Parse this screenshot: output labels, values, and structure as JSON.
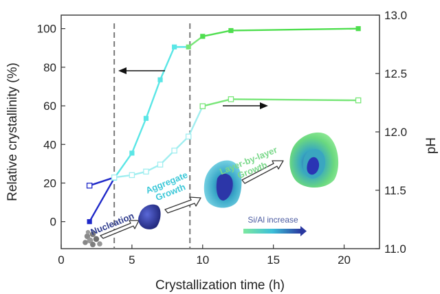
{
  "chart_data": {
    "type": "line",
    "xlabel": "Crystallization time (h)",
    "ylabel_left": "Relative crystallinity (%)",
    "ylabel_right": "pH",
    "xlim": [
      0,
      22.5
    ],
    "ylim_left": [
      -14,
      107
    ],
    "ylim_right": [
      11.0,
      13.0
    ],
    "x_ticks": [
      0,
      5,
      10,
      15,
      20
    ],
    "y_ticks_left": [
      0,
      20,
      40,
      60,
      80,
      100
    ],
    "y_ticks_right": [
      11.0,
      11.5,
      12.0,
      12.5,
      13.0
    ],
    "series": [
      {
        "axis": "left",
        "x": [
          2,
          3.75,
          5,
          6,
          7,
          8,
          9,
          10,
          12,
          21
        ],
        "values": [
          0,
          22.5,
          35.5,
          53.5,
          73.5,
          90.5,
          90.5,
          96,
          99,
          100
        ],
        "marker": "filled-square",
        "segment_colors": [
          "#1e28c8",
          "#5ae6e6",
          "#5ae6e6",
          "#5ae6e6",
          "#5ae6e6",
          "#5ae6e6",
          "#78e678",
          "#4ede4e",
          "#4ede4e"
        ]
      },
      {
        "axis": "right",
        "x": [
          2,
          3.75,
          5,
          6,
          7,
          8,
          9,
          10,
          12,
          21
        ],
        "values": [
          11.54,
          11.61,
          11.63,
          11.66,
          11.72,
          11.84,
          11.96,
          12.22,
          12.28,
          12.27
        ],
        "marker": "open-square",
        "segment_colors": [
          "#1e28c8",
          "#a0eef0",
          "#a0eef0",
          "#a0eef0",
          "#a0eef0",
          "#a0eef0",
          "#a0eef0",
          "#78e678",
          "#78e678"
        ]
      }
    ],
    "dashed_lines_x": [
      3.75,
      9.1
    ],
    "annotations": {
      "nucleation": "Nucleation",
      "aggregate": "Aggregate Growth",
      "layer": "Layer-by-layer Growth",
      "gradient_label": "Si/Al increase"
    }
  },
  "colors": {
    "dark_blue": "#1e28c8",
    "cyan": "#5ae6e6",
    "green": "#4ede4e",
    "nucleation_text": "#2d3a8c",
    "aggregate_text": "#3cc8d8",
    "layer_text": "#7ad88a"
  }
}
